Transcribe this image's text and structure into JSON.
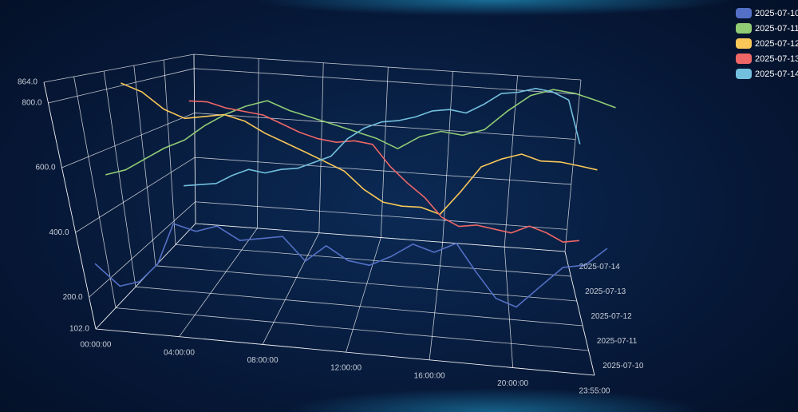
{
  "chart_data": {
    "type": "line3d",
    "x": [
      0,
      60,
      120,
      180,
      240,
      300,
      360,
      420,
      480,
      540,
      600,
      660,
      720,
      780,
      840,
      900,
      960,
      1020,
      1080,
      1140,
      1200,
      1260,
      1320,
      1380,
      1435
    ],
    "xlim": [
      0,
      1435
    ],
    "xticks": [
      {
        "value": 0,
        "label": "00:00:00"
      },
      {
        "value": 240,
        "label": "04:00:00"
      },
      {
        "value": 480,
        "label": "08:00:00"
      },
      {
        "value": 720,
        "label": "12:00:00"
      },
      {
        "value": 960,
        "label": "16:00:00"
      },
      {
        "value": 1200,
        "label": "20:00:00"
      },
      {
        "value": 1435,
        "label": "23:55:00"
      }
    ],
    "ylim": [
      102,
      864
    ],
    "yticks": [
      {
        "value": 102,
        "label": "102.0"
      },
      {
        "value": 200,
        "label": "200.0"
      },
      {
        "value": 400,
        "label": "400.0"
      },
      {
        "value": 600,
        "label": "600.0"
      },
      {
        "value": 800,
        "label": "800.0"
      },
      {
        "value": 864,
        "label": "864.0"
      }
    ],
    "grid": true,
    "legend": "top-right",
    "series": [
      {
        "name": "2025-07-10",
        "color": "#5470c6",
        "values": [
          277,
          210,
          230,
          290,
          420,
          400,
          420,
          380,
          390,
          400,
          330,
          380,
          340,
          330,
          360,
          400,
          380,
          410,
          330,
          260,
          240,
          300,
          360,
          370,
          420
        ]
      },
      {
        "name": "2025-07-11",
        "color": "#91cc75",
        "values": [
          520,
          540,
          580,
          620,
          650,
          700,
          740,
          770,
          790,
          760,
          740,
          720,
          700,
          680,
          650,
          690,
          710,
          700,
          720,
          780,
          830,
          850,
          840,
          820,
          800
        ]
      },
      {
        "name": "2025-07-12",
        "color": "#fac858",
        "values": [
          810,
          780,
          720,
          690,
          700,
          710,
          690,
          650,
          620,
          590,
          560,
          530,
          470,
          430,
          420,
          420,
          400,
          480,
          570,
          600,
          620,
          600,
          600,
          590,
          580
        ]
      },
      {
        "name": "2025-07-13",
        "color": "#ee6666",
        "values": [
          null,
          null,
          720,
          720,
          700,
          690,
          680,
          650,
          620,
          600,
          590,
          600,
          590,
          510,
          450,
          400,
          330,
          300,
          310,
          300,
          290,
          320,
          300,
          270,
          280
        ]
      },
      {
        "name": "2025-07-14",
        "color": "#73c0de",
        "values": [
          310,
          320,
          330,
          370,
          400,
          390,
          410,
          420,
          450,
          480,
          560,
          610,
          640,
          650,
          670,
          700,
          710,
          700,
          740,
          790,
          800,
          820,
          810,
          780,
          600
        ]
      }
    ]
  }
}
